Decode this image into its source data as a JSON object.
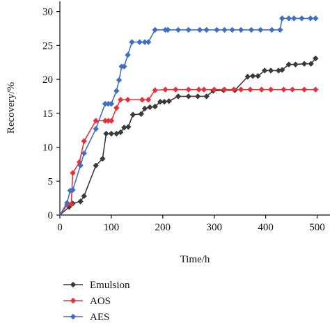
{
  "chart_data": {
    "type": "line",
    "title": "",
    "xlabel": "Time/h",
    "ylabel": "Recovery/%",
    "xlim": [
      0,
      525
    ],
    "ylim": [
      0,
      31.5
    ],
    "xticks": [
      0,
      100,
      200,
      300,
      400,
      500
    ],
    "yticks": [
      0,
      5,
      10,
      15,
      20,
      25,
      30
    ],
    "grid": false,
    "legend_position": "bottom-left",
    "series": [
      {
        "name": "Emulsion",
        "color": "#3a3a3a",
        "marker": "diamond",
        "points": [
          [
            0,
            0
          ],
          [
            18,
            1.2
          ],
          [
            25,
            1.7
          ],
          [
            40,
            2.0
          ],
          [
            47,
            2.8
          ],
          [
            70,
            7.3
          ],
          [
            83,
            8.3
          ],
          [
            90,
            12.0
          ],
          [
            100,
            12.0
          ],
          [
            110,
            12.0
          ],
          [
            118,
            12.2
          ],
          [
            125,
            12.9
          ],
          [
            133,
            13.0
          ],
          [
            142,
            14.8
          ],
          [
            158,
            14.9
          ],
          [
            165,
            15.7
          ],
          [
            175,
            15.9
          ],
          [
            185,
            16.0
          ],
          [
            195,
            16.7
          ],
          [
            203,
            16.7
          ],
          [
            212,
            16.8
          ],
          [
            230,
            17.5
          ],
          [
            250,
            17.5
          ],
          [
            268,
            17.5
          ],
          [
            285,
            17.5
          ],
          [
            298,
            18.3
          ],
          [
            318,
            18.4
          ],
          [
            340,
            18.4
          ],
          [
            365,
            20.4
          ],
          [
            375,
            20.5
          ],
          [
            385,
            20.5
          ],
          [
            398,
            21.3
          ],
          [
            410,
            21.3
          ],
          [
            425,
            21.3
          ],
          [
            432,
            21.4
          ],
          [
            445,
            22.2
          ],
          [
            458,
            22.2
          ],
          [
            475,
            22.3
          ],
          [
            488,
            22.3
          ],
          [
            497,
            23.1
          ]
        ]
      },
      {
        "name": "AOS",
        "color": "#e8303a",
        "marker": "diamond",
        "points": [
          [
            0,
            0
          ],
          [
            14,
            1.5
          ],
          [
            22,
            1.6
          ],
          [
            25,
            6.2
          ],
          [
            38,
            7.8
          ],
          [
            47,
            10.9
          ],
          [
            70,
            13.9
          ],
          [
            88,
            13.9
          ],
          [
            94,
            13.9
          ],
          [
            100,
            13.9
          ],
          [
            110,
            15.8
          ],
          [
            118,
            17.0
          ],
          [
            132,
            17.0
          ],
          [
            160,
            17.0
          ],
          [
            172,
            17.0
          ],
          [
            185,
            18.4
          ],
          [
            205,
            18.5
          ],
          [
            225,
            18.5
          ],
          [
            250,
            18.5
          ],
          [
            270,
            18.5
          ],
          [
            280,
            18.5
          ],
          [
            300,
            18.5
          ],
          [
            320,
            18.5
          ],
          [
            338,
            18.5
          ],
          [
            352,
            18.5
          ],
          [
            370,
            18.5
          ],
          [
            392,
            18.5
          ],
          [
            410,
            18.5
          ],
          [
            435,
            18.5
          ],
          [
            452,
            18.5
          ],
          [
            475,
            18.5
          ],
          [
            497,
            18.5
          ]
        ]
      },
      {
        "name": "AES",
        "color": "#3f6fc2",
        "marker": "diamond",
        "points": [
          [
            0,
            0
          ],
          [
            14,
            1.8
          ],
          [
            20,
            3.6
          ],
          [
            25,
            3.7
          ],
          [
            40,
            7.3
          ],
          [
            47,
            9.1
          ],
          [
            70,
            12.7
          ],
          [
            88,
            16.4
          ],
          [
            94,
            16.4
          ],
          [
            100,
            16.4
          ],
          [
            110,
            18.3
          ],
          [
            115,
            19.9
          ],
          [
            120,
            21.9
          ],
          [
            125,
            21.9
          ],
          [
            132,
            23.6
          ],
          [
            140,
            25.5
          ],
          [
            155,
            25.5
          ],
          [
            165,
            25.5
          ],
          [
            172,
            25.5
          ],
          [
            185,
            27.3
          ],
          [
            205,
            27.3
          ],
          [
            210,
            27.3
          ],
          [
            230,
            27.3
          ],
          [
            250,
            27.3
          ],
          [
            272,
            27.3
          ],
          [
            285,
            27.3
          ],
          [
            305,
            27.3
          ],
          [
            320,
            27.3
          ],
          [
            335,
            27.3
          ],
          [
            352,
            27.3
          ],
          [
            372,
            27.3
          ],
          [
            390,
            27.3
          ],
          [
            412,
            27.3
          ],
          [
            428,
            27.3
          ],
          [
            432,
            29.0
          ],
          [
            445,
            29.0
          ],
          [
            455,
            29.0
          ],
          [
            470,
            29.0
          ],
          [
            487,
            29.0
          ],
          [
            497,
            29.0
          ]
        ]
      }
    ]
  }
}
